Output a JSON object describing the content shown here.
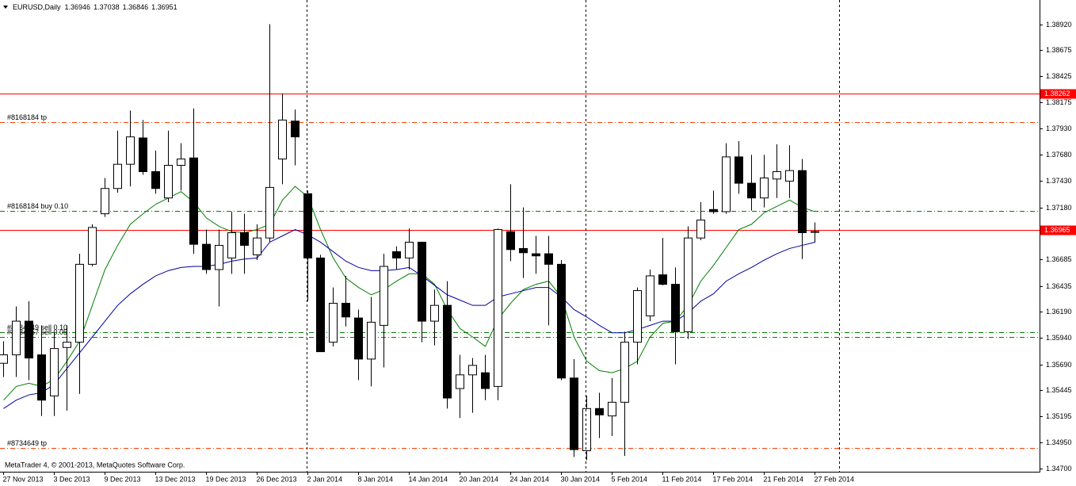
{
  "chart_data": {
    "type": "candlestick",
    "title": "EURUSD,Daily",
    "footer": "MetaTrader 4, © 2001-2013, MetaQuotes Software Corp.",
    "categories": [
      "27 Nov 2013",
      null,
      null,
      null,
      "3 Dec 2013",
      null,
      null,
      null,
      "9 Dec 2013",
      null,
      null,
      null,
      "13 Dec 2013",
      null,
      null,
      null,
      "19 Dec 2013",
      null,
      null,
      null,
      "26 Dec 2013",
      null,
      null,
      null,
      "2 Jan 2014",
      null,
      null,
      null,
      "8 Jan 2014",
      null,
      null,
      null,
      "14 Jan 2014",
      null,
      null,
      null,
      "20 Jan 2014",
      null,
      null,
      null,
      "24 Jan 2014",
      null,
      null,
      null,
      "30 Jan 2014",
      null,
      null,
      null,
      "5 Feb 2014",
      null,
      null,
      null,
      "11 Feb 2014",
      null,
      null,
      null,
      "17 Feb 2014",
      null,
      null,
      null,
      "21 Feb 2014",
      null,
      null,
      null,
      "27 Feb 2014"
    ],
    "open": [
      1.357,
      1.3578,
      1.361,
      1.3578,
      1.3539,
      1.3585,
      1.359,
      1.3664,
      1.3712,
      1.3736,
      1.3759,
      1.3784,
      1.3752,
      1.3727,
      1.3758,
      1.3765,
      1.3683,
      1.3659,
      1.367,
      1.3694,
      1.3673,
      1.3689,
      1.3764,
      1.38,
      1.3731,
      1.367,
      1.359,
      1.3627,
      1.3613,
      1.3574,
      1.3606,
      1.3676,
      1.367,
      1.3685,
      1.361,
      1.3625,
      1.3546,
      1.3559,
      1.3561,
      1.3548,
      1.3695,
      1.3679,
      1.3674,
      1.3674,
      1.3664,
      1.3556,
      1.3487,
      1.3527,
      1.352,
      1.3533,
      1.359,
      1.3615,
      1.3654,
      1.3645,
      1.36,
      1.3689,
      1.3716,
      1.3714,
      1.3766,
      1.3741,
      1.3727,
      1.3745,
      1.3743,
      1.3753,
      1.36946
    ],
    "high": [
      1.3591,
      1.3624,
      1.3629,
      1.3606,
      1.3599,
      1.3606,
      1.3674,
      1.3702,
      1.3746,
      1.3791,
      1.381,
      1.3801,
      1.3772,
      1.3791,
      1.3779,
      1.3812,
      1.3697,
      1.3697,
      1.3714,
      1.3712,
      1.3702,
      1.3892,
      1.3826,
      1.3811,
      1.3734,
      1.3673,
      1.3642,
      1.3653,
      1.3621,
      1.3633,
      1.3674,
      1.3681,
      1.3698,
      1.3685,
      1.364,
      1.3648,
      1.3578,
      1.3575,
      1.3578,
      1.3698,
      1.374,
      1.3718,
      1.3691,
      1.3691,
      1.3668,
      1.3574,
      1.3539,
      1.3542,
      1.3556,
      1.36,
      1.3642,
      1.3659,
      1.3689,
      1.3661,
      1.37,
      1.3723,
      1.3734,
      1.3779,
      1.3781,
      1.3768,
      1.3768,
      1.3778,
      1.3777,
      1.3764,
      1.37038
    ],
    "low": [
      1.3557,
      1.3557,
      1.3554,
      1.352,
      1.352,
      1.3525,
      1.3541,
      1.3662,
      1.3709,
      1.3732,
      1.3738,
      1.3749,
      1.3731,
      1.3723,
      1.3734,
      1.3674,
      1.3655,
      1.3624,
      1.3655,
      1.3655,
      1.3668,
      1.3685,
      1.374,
      1.3758,
      1.3629,
      1.3581,
      1.3586,
      1.3605,
      1.3554,
      1.3548,
      1.3566,
      1.3659,
      1.3659,
      1.359,
      1.3587,
      1.3527,
      1.3518,
      1.3523,
      1.3535,
      1.3535,
      1.3667,
      1.3651,
      1.3655,
      1.3606,
      1.3554,
      1.3481,
      1.3478,
      1.3499,
      1.3501,
      1.3482,
      1.3569,
      1.361,
      1.3644,
      1.3569,
      1.3593,
      1.3687,
      1.3712,
      1.3712,
      1.3731,
      1.3715,
      1.3718,
      1.3727,
      1.3727,
      1.3669,
      1.36846
    ],
    "close": [
      1.3578,
      1.361,
      1.3575,
      1.3535,
      1.3584,
      1.359,
      1.3664,
      1.3699,
      1.3736,
      1.3759,
      1.3785,
      1.3752,
      1.3736,
      1.3758,
      1.3764,
      1.3683,
      1.3659,
      1.3682,
      1.3694,
      1.3682,
      1.3689,
      1.3737,
      1.3801,
      1.3785,
      1.367,
      1.3581,
      1.3627,
      1.3614,
      1.3574,
      1.3609,
      1.3662,
      1.367,
      1.3685,
      1.361,
      1.3625,
      1.3537,
      1.3559,
      1.3568,
      1.3546,
      1.3697,
      1.3678,
      1.3675,
      1.3672,
      1.3664,
      1.3556,
      1.3488,
      1.3527,
      1.3521,
      1.3533,
      1.359,
      1.3639,
      1.3653,
      1.3645,
      1.36,
      1.3689,
      1.3706,
      1.3714,
      1.3766,
      1.3741,
      1.3727,
      1.3746,
      1.3752,
      1.3753,
      1.3694,
      1.36951
    ],
    "up_color": "#ffffff",
    "down_color": "#000000",
    "series": [
      {
        "color": "#008000",
        "values": [
          1.3535,
          1.3548,
          1.3551,
          1.3548,
          1.3555,
          1.3572,
          1.3591,
          1.3625,
          1.3659,
          1.3682,
          1.3702,
          1.3712,
          1.3721,
          1.3727,
          1.3733,
          1.3723,
          1.3708,
          1.37,
          1.3695,
          1.3694,
          1.3697,
          1.3702,
          1.3725,
          1.3738,
          1.3728,
          1.3697,
          1.367,
          1.3651,
          1.3642,
          1.3635,
          1.364,
          1.3648,
          1.3655,
          1.3655,
          1.3645,
          1.3621,
          1.3603,
          1.3595,
          1.3586,
          1.3612,
          1.3627,
          1.364,
          1.3645,
          1.3648,
          1.3633,
          1.3595,
          1.3572,
          1.3563,
          1.3561,
          1.3565,
          1.3572,
          1.3595,
          1.3608,
          1.361,
          1.3625,
          1.3648,
          1.3663,
          1.368,
          1.3697,
          1.3702,
          1.3713,
          1.3719,
          1.3725,
          1.3718,
          1.3714
        ]
      },
      {
        "color": "#0000a0",
        "values": [
          1.3527,
          1.3535,
          1.354,
          1.3542,
          1.355,
          1.3565,
          1.358,
          1.3595,
          1.361,
          1.3625,
          1.3636,
          1.3645,
          1.3653,
          1.3658,
          1.3661,
          1.3662,
          1.3662,
          1.3664,
          1.3667,
          1.3669,
          1.367,
          1.3685,
          1.3691,
          1.3697,
          1.3692,
          1.3685,
          1.3676,
          1.3667,
          1.3661,
          1.3658,
          1.3658,
          1.3659,
          1.3661,
          1.3653,
          1.3644,
          1.3635,
          1.363,
          1.3625,
          1.3625,
          1.3633,
          1.3636,
          1.3639,
          1.3642,
          1.3642,
          1.3633,
          1.3621,
          1.3614,
          1.3606,
          1.3599,
          1.3599,
          1.3602,
          1.3606,
          1.361,
          1.361,
          1.3618,
          1.3629,
          1.3636,
          1.3648,
          1.3655,
          1.3661,
          1.3668,
          1.3674,
          1.3679,
          1.3682,
          1.3685
        ]
      }
    ],
    "levels": [
      {
        "value": 1.38262,
        "color": "#ff0000",
        "style": "solid"
      },
      {
        "value": 1.36965,
        "color": "#ff0000",
        "style": "solid"
      },
      {
        "value": 1.3799,
        "label": "#8168184 tp",
        "color": "#ff3c00",
        "style": "dashdot"
      },
      {
        "value": 1.37147,
        "label": "#8168184 buy 0.10",
        "color": "#008000",
        "style": "dashdot"
      },
      {
        "value": 1.35995,
        "label": "#8734649 sell 0.10",
        "color": "#008000",
        "style": "dashdot"
      },
      {
        "value": 1.3595,
        "label": "#8734657 sell 0.05",
        "color": "#008000",
        "style": "dashdot"
      },
      {
        "value": 1.34896,
        "label": "#8734649 tp",
        "color": "#ff3c00",
        "style": "dashdot"
      }
    ],
    "ylim": [
      1.3467,
      1.3915
    ],
    "yticks": [
      {
        "value": 1.3892,
        "label": "1.38920"
      },
      1.38675,
      1.38425,
      1.38175,
      {
        "value": 1.3793,
        "label": "1.37930"
      },
      {
        "value": 1.3768,
        "label": "1.37680"
      },
      {
        "value": 1.3743,
        "label": "1.37430"
      },
      {
        "value": 1.3718,
        "label": "1.37180"
      },
      1.36685,
      1.36435,
      {
        "value": 1.3619,
        "label": "1.36190"
      },
      {
        "value": 1.3594,
        "label": "1.35940"
      },
      {
        "value": 1.3569,
        "label": "1.35690"
      },
      1.35445,
      1.35195,
      {
        "value": 1.3495,
        "label": "1.34950"
      },
      {
        "value": 1.347,
        "label": "1.34700"
      }
    ],
    "grid": false
  }
}
